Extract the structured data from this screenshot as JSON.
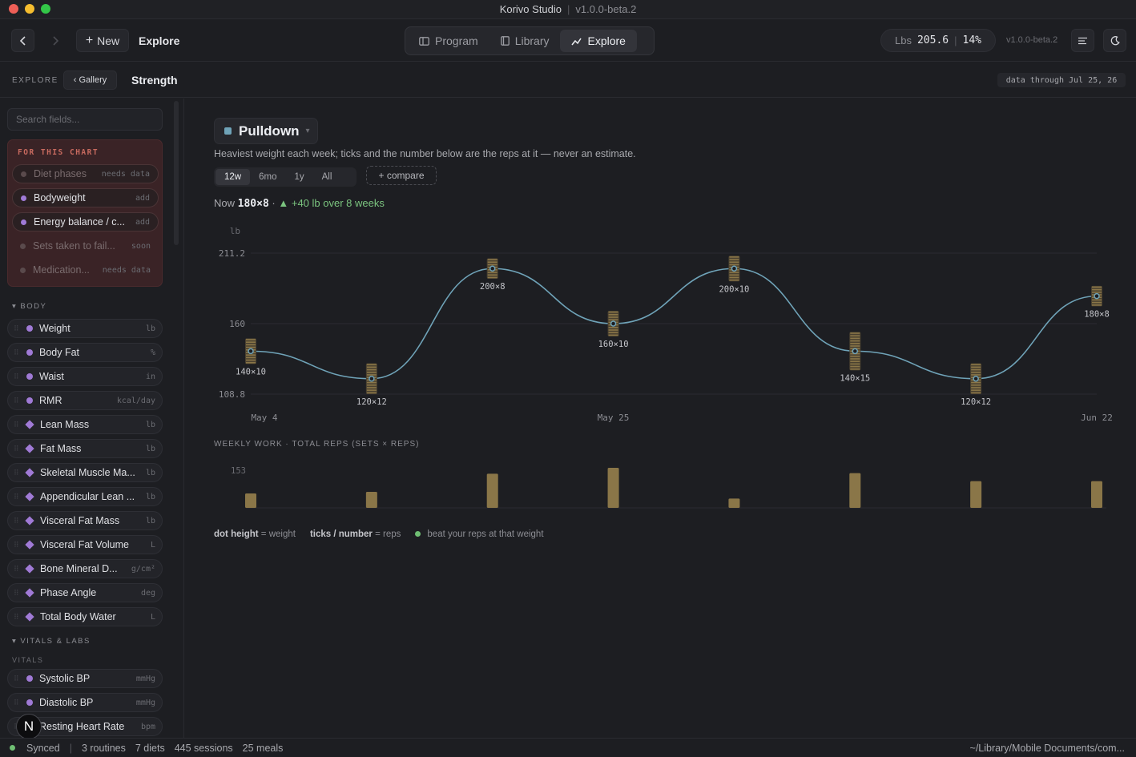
{
  "window": {
    "title": "Korivo Studio",
    "version": "v1.0.0-beta.2"
  },
  "toolbar": {
    "new_label": "New",
    "title": "Explore",
    "tabs": [
      {
        "label": "Program",
        "icon": "program-icon",
        "active": false
      },
      {
        "label": "Library",
        "icon": "library-icon",
        "active": false
      },
      {
        "label": "Explore",
        "icon": "explore-icon",
        "active": true
      }
    ],
    "stats": {
      "unit": "Lbs",
      "weight": "205.6",
      "bodyfat": "14%"
    },
    "version": "v1.0.0-beta.2"
  },
  "crumbs": {
    "root": "EXPLORE",
    "gallery": "‹ Gallery",
    "title": "Strength",
    "data_through": "data through Jul 25, 26"
  },
  "sidebar": {
    "search_placeholder": "Search fields...",
    "for_chart_title": "FOR THIS CHART",
    "for_chart": [
      {
        "name": "Diet phases",
        "tag": "needs data",
        "dot": "#5a4a4c",
        "active": false
      },
      {
        "name": "Bodyweight",
        "tag": "add",
        "dot": "#a07ad6",
        "active": true
      },
      {
        "name": "Energy balance / c...",
        "tag": "add",
        "dot": "#a07ad6",
        "active": true
      },
      {
        "name": "Sets taken to fail...",
        "tag": "soon",
        "dot": "#5a4a4c",
        "active": false
      },
      {
        "name": "Medication...",
        "tag": "needs data",
        "dot": "#5a4a4c",
        "active": false
      }
    ],
    "body_title": "BODY",
    "body": [
      {
        "name": "Weight",
        "unit": "lb",
        "shape": "dot"
      },
      {
        "name": "Body Fat",
        "unit": "%",
        "shape": "dot"
      },
      {
        "name": "Waist",
        "unit": "in",
        "shape": "dot"
      },
      {
        "name": "RMR",
        "unit": "kcal/day",
        "shape": "dot"
      },
      {
        "name": "Lean Mass",
        "unit": "lb",
        "shape": "diamond"
      },
      {
        "name": "Fat Mass",
        "unit": "lb",
        "shape": "diamond"
      },
      {
        "name": "Skeletal Muscle Ma...",
        "unit": "lb",
        "shape": "diamond"
      },
      {
        "name": "Appendicular Lean ...",
        "unit": "lb",
        "shape": "diamond"
      },
      {
        "name": "Visceral Fat Mass",
        "unit": "lb",
        "shape": "diamond"
      },
      {
        "name": "Visceral Fat Volume",
        "unit": "L",
        "shape": "diamond"
      },
      {
        "name": "Bone Mineral D...",
        "unit": "g/cm²",
        "shape": "diamond"
      },
      {
        "name": "Phase Angle",
        "unit": "deg",
        "shape": "diamond"
      },
      {
        "name": "Total Body Water",
        "unit": "L",
        "shape": "diamond"
      }
    ],
    "vitals_title": "VITALS & LABS",
    "vitals_sub": "VITALS",
    "vitals": [
      {
        "name": "Systolic BP",
        "unit": "mmHg",
        "shape": "dot"
      },
      {
        "name": "Diastolic BP",
        "unit": "mmHg",
        "shape": "dot"
      },
      {
        "name": "Resting Heart Rate",
        "unit": "bpm",
        "shape": "dot"
      }
    ],
    "avatar_letter": "N"
  },
  "main": {
    "exercise": "Pulldown",
    "description": "Heaviest weight each week; ticks and the number below are the reps at it — never an estimate.",
    "ranges": [
      {
        "label": "12w",
        "active": true
      },
      {
        "label": "6mo",
        "active": false
      },
      {
        "label": "1y",
        "active": false
      },
      {
        "label": "All",
        "active": false
      }
    ],
    "compare_label": "+ compare",
    "now_prefix": "Now",
    "now_value": "180×8",
    "now_dot": "·",
    "now_change": "▲ +40 lb over 8 weeks",
    "weekly_work_title": "WEEKLY WORK · TOTAL REPS (SETS × REPS)",
    "legend": {
      "a_bold": "dot height",
      "a_rest": "= weight",
      "b_bold": "ticks / number",
      "b_rest": "= reps",
      "c": "beat your reps at that weight"
    }
  },
  "chart_data": [
    {
      "type": "line",
      "ylabel": "lb",
      "ylim": [
        108.8,
        211.2
      ],
      "yticks": [
        "211.2",
        "160",
        "108.8"
      ],
      "xticks": [
        "May 4",
        "May 25",
        "Jun 22"
      ],
      "line_color": "#6fa3b8",
      "tick_color": "#8a7648",
      "series": [
        {
          "points": [
            {
              "weight": 140,
              "reps": 10,
              "label": "140×10"
            },
            {
              "weight": 120,
              "reps": 12,
              "label": "120×12"
            },
            {
              "weight": 200,
              "reps": 8,
              "label": "200×8"
            },
            {
              "weight": 160,
              "reps": 10,
              "label": "160×10"
            },
            {
              "weight": 200,
              "reps": 10,
              "label": "200×10"
            },
            {
              "weight": 140,
              "reps": 15,
              "label": "140×15"
            },
            {
              "weight": 120,
              "reps": 12,
              "label": "120×12"
            },
            {
              "weight": 180,
              "reps": 8,
              "label": "180×8"
            }
          ]
        }
      ]
    },
    {
      "type": "bar",
      "title": "WEEKLY WORK · TOTAL REPS (SETS × REPS)",
      "ymax_label": "153",
      "ylim": [
        0,
        153
      ],
      "bar_color": "#8a7648",
      "values": [
        54,
        60,
        128,
        150,
        35,
        130,
        100,
        100
      ]
    }
  ],
  "status": {
    "synced": "Synced",
    "routines": "3 routines",
    "diets": "7 diets",
    "sessions": "445 sessions",
    "meals": "25 meals",
    "path": "~/Library/Mobile Documents/com..."
  }
}
